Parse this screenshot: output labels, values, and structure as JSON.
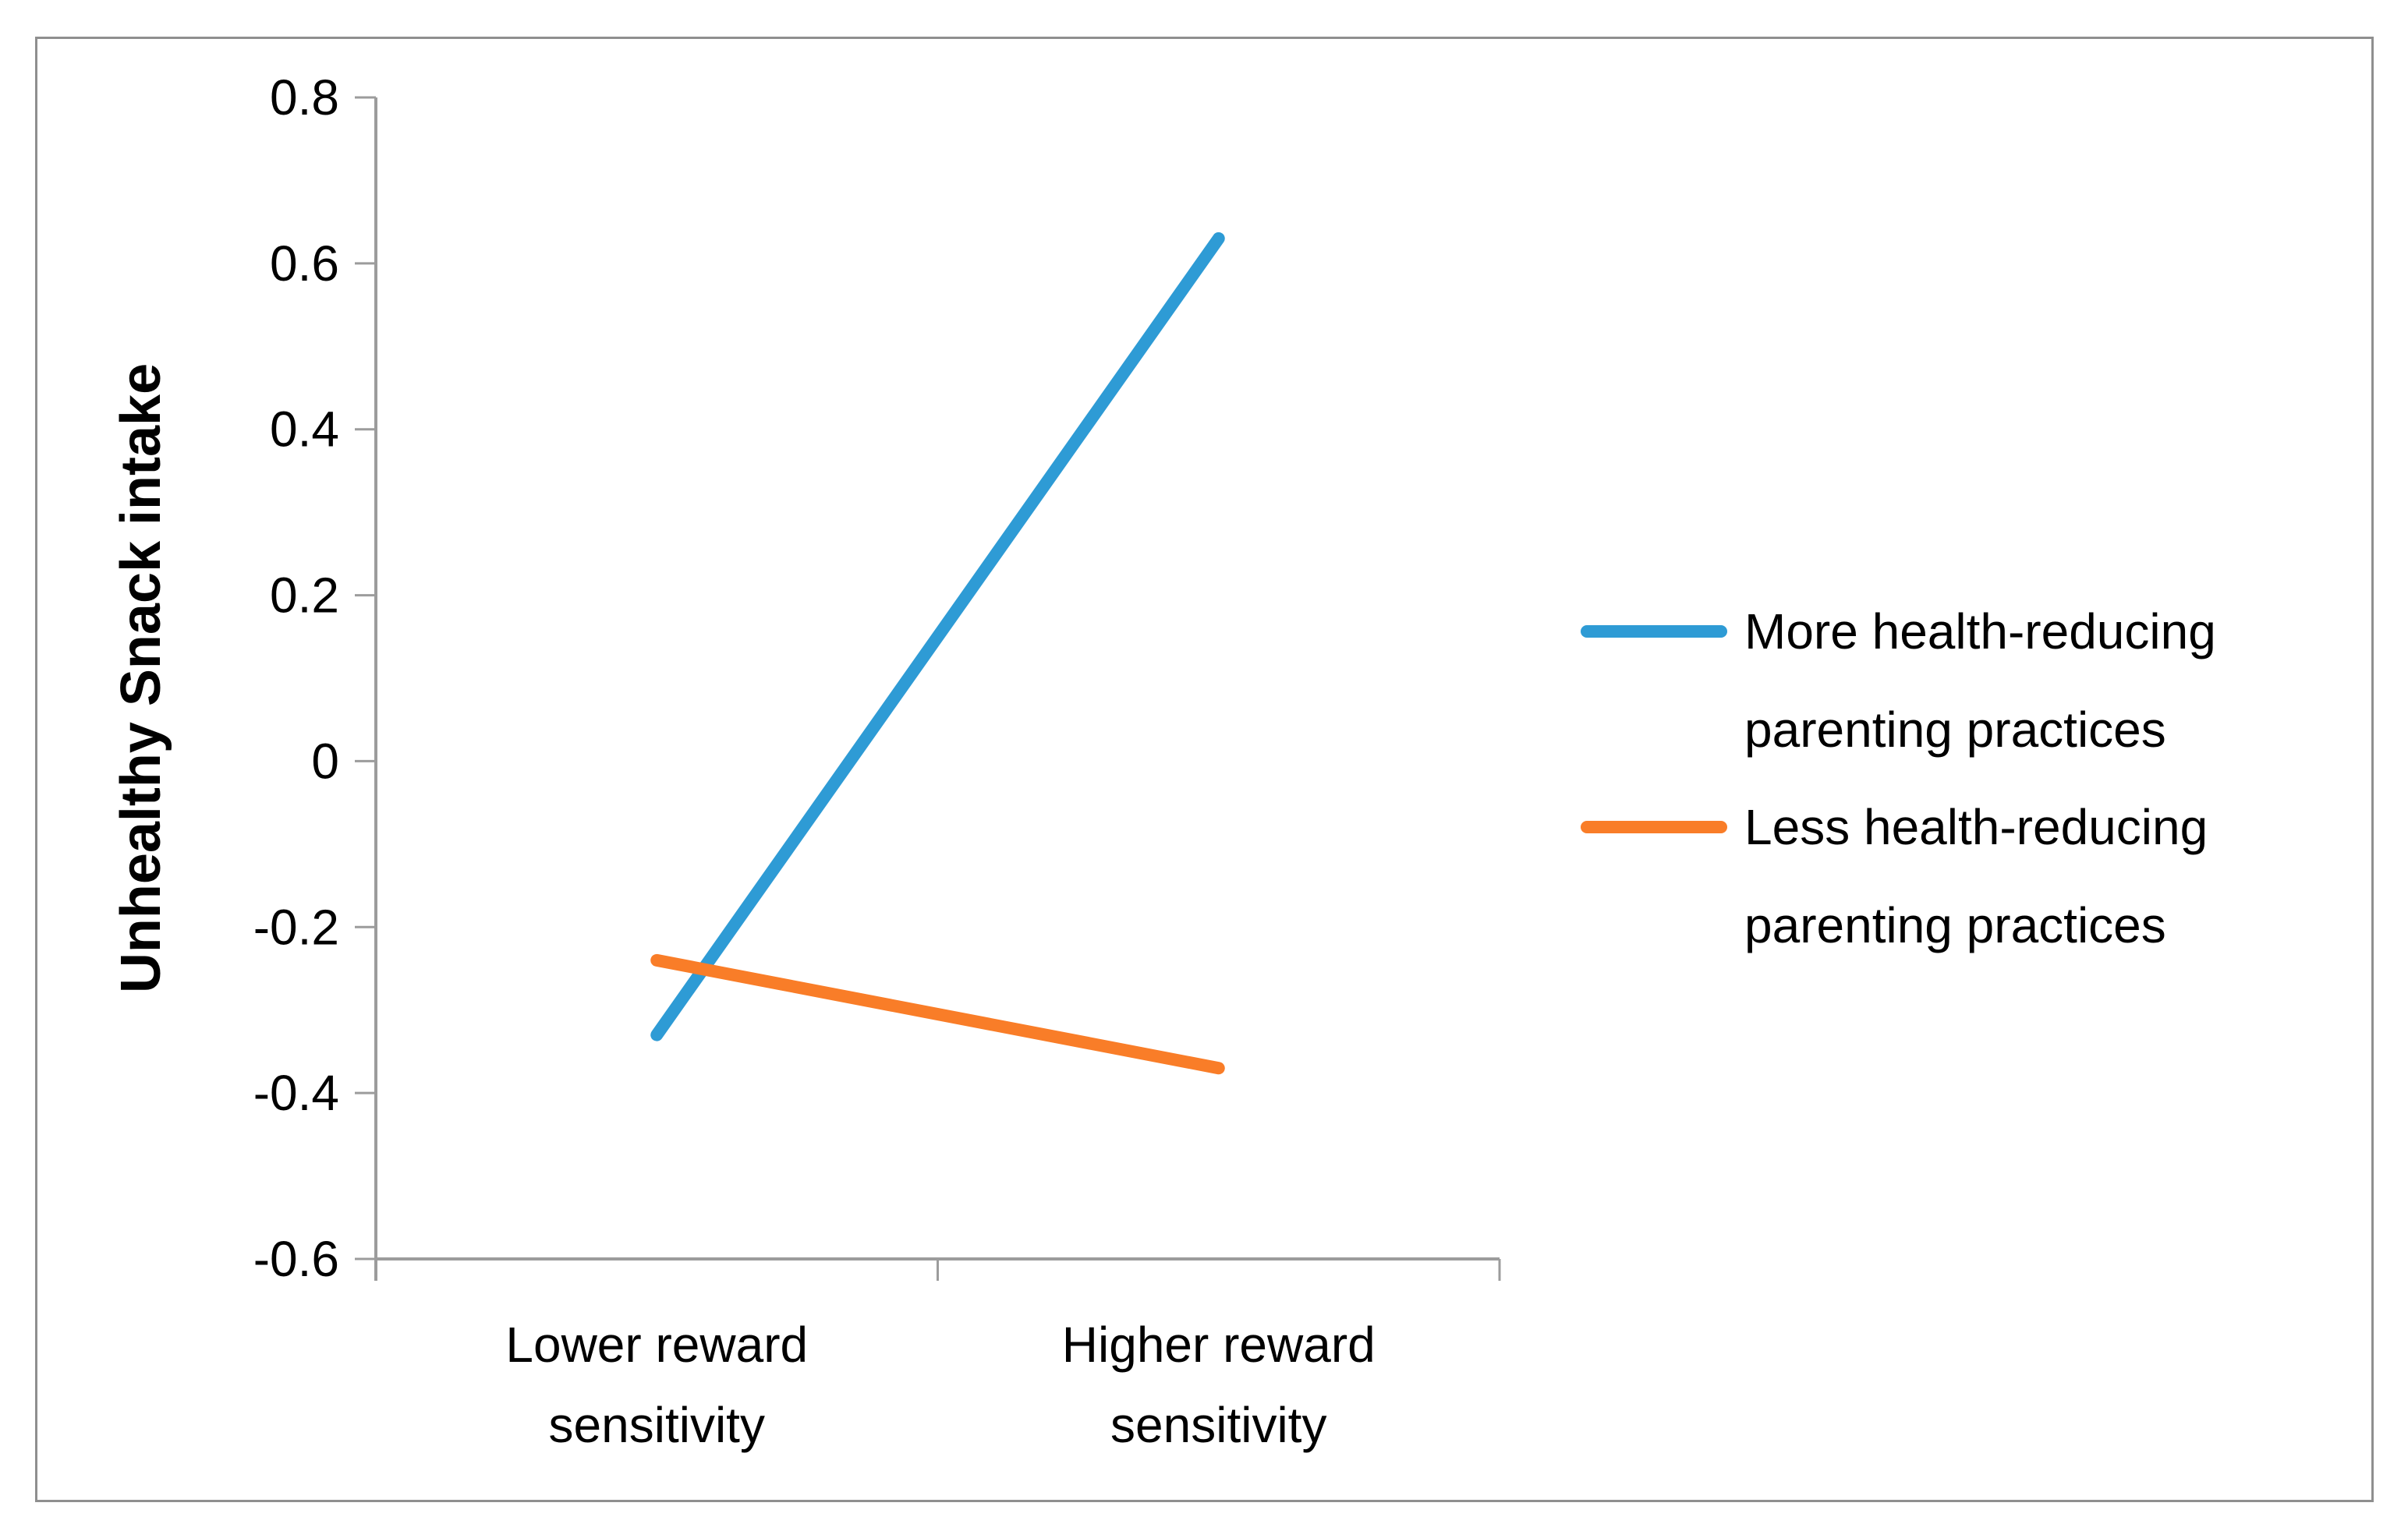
{
  "frame": {
    "background_color": "#ffffff",
    "border_color": "#8f8f8f",
    "axis_color": "#9c9c9c",
    "text_color": "#000000"
  },
  "chart_data": {
    "type": "line",
    "title": "",
    "xlabel": "",
    "ylabel": "Unhealthy Snack intake",
    "categories": [
      [
        "Lower reward",
        "sensitivity"
      ],
      [
        "Higher reward",
        "sensitivity"
      ]
    ],
    "series": [
      {
        "name": "More health-reducing parenting practices",
        "name_lines": [
          "More health-reducing",
          "parenting practices"
        ],
        "color": "#2E9BD5",
        "values": [
          -0.33,
          0.63
        ]
      },
      {
        "name": "Less health-reducing parenting practices",
        "name_lines": [
          "Less health-reducing",
          "parenting practices"
        ],
        "color": "#F97D28",
        "values": [
          -0.24,
          -0.37
        ]
      }
    ],
    "y_ticks": [
      0.8,
      0.6,
      0.4,
      0.2,
      0,
      -0.2,
      -0.4,
      -0.6
    ],
    "y_tick_labels": [
      "0.8",
      "0.6",
      "0.4",
      "0.2",
      "0",
      "-0.2",
      "-0.4",
      "-0.6"
    ],
    "ylim": [
      -0.6,
      0.8
    ],
    "grid": false,
    "legend_position": "right"
  }
}
